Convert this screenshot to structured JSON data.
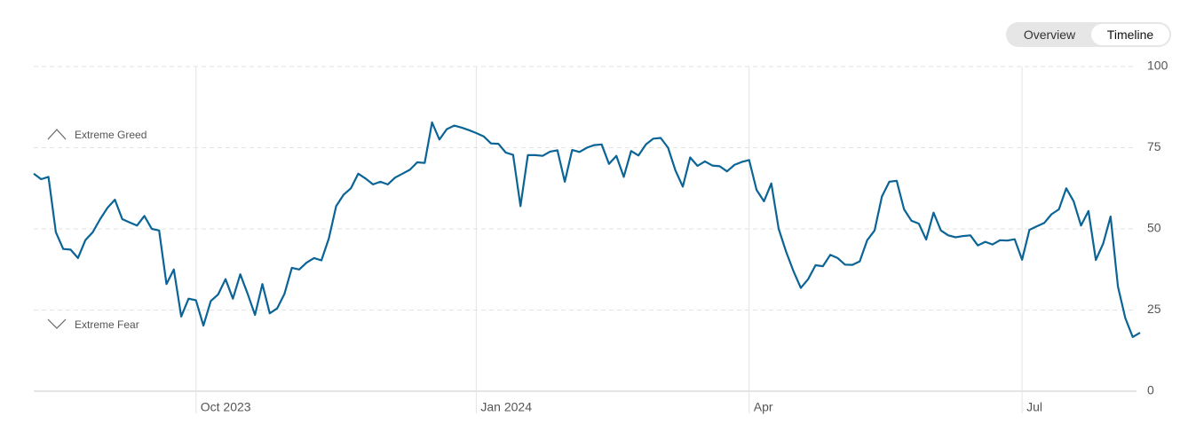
{
  "controls": [
    "Overview",
    "Timeline"
  ],
  "chart_data": {
    "type": "line",
    "annotations": [
      "Extreme Greed",
      "Extreme Fear"
    ],
    "categories": [
      null,
      null,
      null,
      null,
      null,
      null,
      null,
      null,
      null,
      null,
      null,
      null,
      null,
      null,
      null,
      null,
      null,
      null,
      null,
      null,
      null,
      null,
      "Oct 2023",
      null,
      null,
      null,
      null,
      null,
      null,
      null,
      null,
      null,
      null,
      null,
      null,
      null,
      null,
      null,
      null,
      null,
      null,
      null,
      null,
      null,
      null,
      null,
      null,
      null,
      null,
      null,
      null,
      null,
      null,
      null,
      null,
      null,
      null,
      null,
      null,
      null,
      "Jan 2024",
      null,
      null,
      null,
      null,
      null,
      null,
      null,
      null,
      null,
      null,
      null,
      null,
      null,
      null,
      null,
      null,
      null,
      null,
      null,
      null,
      null,
      null,
      null,
      null,
      null,
      null,
      null,
      null,
      null,
      null,
      null,
      null,
      null,
      null,
      null,
      null,
      "Apr",
      null,
      null,
      null,
      null,
      null,
      null,
      null,
      null,
      null,
      null,
      null,
      null,
      null,
      null,
      null,
      null,
      null,
      null,
      null,
      null,
      null,
      null,
      null,
      null,
      null,
      null,
      null,
      null,
      null,
      null,
      null,
      null,
      null,
      null,
      null,
      null,
      "Jul",
      null,
      null,
      null,
      null,
      null,
      null,
      null,
      null,
      null,
      null,
      null,
      null,
      null,
      null,
      null,
      null
    ],
    "series": [
      {
        "name": null,
        "color": "#0b6496",
        "values": [
          67,
          65.3,
          66,
          49,
          43.8,
          43.6,
          41,
          46.5,
          49,
          53,
          56.5,
          59,
          53,
          52,
          51,
          54,
          50,
          49.5,
          33,
          37.5,
          23,
          28.5,
          28,
          20.2,
          27.8,
          29.8,
          34.5,
          28.5,
          36,
          30,
          23.5,
          33,
          24,
          25.5,
          30,
          38,
          37.5,
          39.6,
          41,
          40.3,
          47,
          57,
          60.5,
          62.5,
          67,
          65.5,
          63.7,
          64.5,
          63.7,
          65.8,
          67,
          68.2,
          70.5,
          70.3,
          82.8,
          77.5,
          80.7,
          81.8,
          81.2,
          80.4,
          79.5,
          78.5,
          76.3,
          76.2,
          73.5,
          72.8,
          57,
          72.7,
          72.7,
          72.5,
          73.8,
          74.2,
          64.5,
          74.3,
          73.7,
          75,
          75.8,
          76,
          70,
          72.5,
          66,
          74,
          72.6,
          76,
          77.8,
          78,
          75,
          68,
          63,
          72,
          69.4,
          70.8,
          69.5,
          69.3,
          67.7,
          69.7,
          70.6,
          71.2,
          62,
          58.5,
          64,
          50,
          43,
          37,
          31.8,
          34.5,
          38.8,
          38.5,
          42,
          41,
          39,
          38.9,
          40,
          46.5,
          49.5,
          60,
          64.5,
          64.8,
          56,
          52.5,
          51.6,
          46.7,
          55,
          49.5,
          48,
          47.4,
          47.8,
          48,
          44.9,
          46,
          45.2,
          46.5,
          46.4,
          46.8,
          40.5,
          49.7,
          50.8,
          51.8,
          54.5,
          56,
          62.5,
          58.5,
          51,
          55.5,
          40.4,
          45.5,
          53.8,
          32.2,
          22.5,
          16.7,
          18
        ]
      }
    ],
    "ylim": [
      0,
      100
    ],
    "yticks": [
      0,
      25,
      50,
      75,
      100
    ],
    "grid": true
  }
}
